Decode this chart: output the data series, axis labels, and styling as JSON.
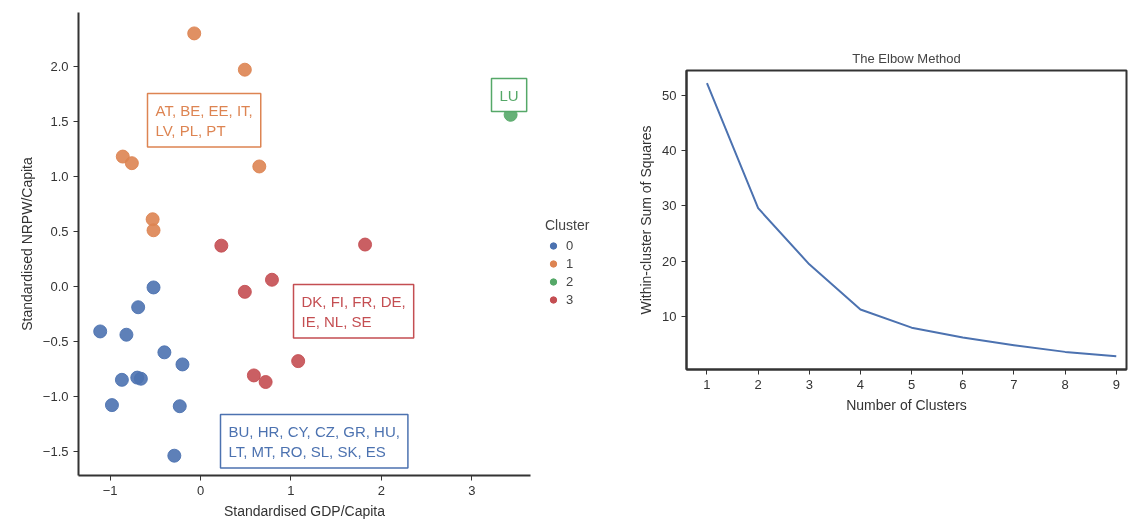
{
  "chart_data": [
    {
      "type": "scatter",
      "xlabel": "Standardised GDP/Capita",
      "ylabel": "Standardised NRPW/Capita",
      "legend_title": "Cluster",
      "legend": "right",
      "grid": false,
      "marker": "circle",
      "xlim": [
        -1.35,
        3.65
      ],
      "ylim": [
        -1.72,
        2.49
      ],
      "xticks": [
        -1,
        0,
        1,
        2,
        3
      ],
      "yticks": [
        {
          "value": -1.5,
          "label": "−1.5"
        },
        {
          "value": -1,
          "label": "−1.0"
        },
        {
          "value": -0.5,
          "label": "−0.5"
        },
        {
          "value": 0,
          "label": "0.0"
        },
        {
          "value": 0.5,
          "label": "0.5"
        },
        {
          "value": 1,
          "label": "1.0"
        },
        {
          "value": 1.5,
          "label": "1.5"
        },
        {
          "value": 2,
          "label": "2.0"
        }
      ],
      "series": [
        {
          "name": "0",
          "color": "#4c72b0",
          "x": [
            -0.52,
            -0.69,
            -1.11,
            -0.82,
            -0.4,
            -0.2,
            -0.87,
            -0.7,
            -0.66,
            -0.98,
            -0.23,
            -0.29
          ],
          "values": [
            -0.01,
            -0.19,
            -0.41,
            -0.44,
            -0.6,
            -0.71,
            -0.85,
            -0.83,
            -0.84,
            -1.08,
            -1.09,
            -1.54
          ]
        },
        {
          "name": "1",
          "color": "#dd8452",
          "x": [
            -0.07,
            0.49,
            -0.86,
            -0.76,
            0.65,
            -0.53,
            -0.52
          ],
          "values": [
            2.3,
            1.97,
            1.18,
            1.12,
            1.09,
            0.61,
            0.51
          ]
        },
        {
          "name": "2",
          "color": "#55a868",
          "x": [
            3.43
          ],
          "values": [
            1.56
          ]
        },
        {
          "name": "3",
          "color": "#c44e52",
          "x": [
            0.23,
            1.82,
            0.79,
            0.49,
            1.08,
            0.59,
            0.72
          ],
          "values": [
            0.37,
            0.38,
            0.06,
            -0.05,
            -0.68,
            -0.81,
            -0.87
          ]
        }
      ],
      "annotations": [
        "BU, HR, CY, CZ, GR, HU,\nLT, MT, RO, SL, SK, ES",
        "AT, BE, EE, IT,\nLV, PL, PT",
        "LU",
        "DK, FI, FR, DE,\nIE, NL, SE"
      ]
    },
    {
      "type": "line",
      "title": "The Elbow Method",
      "xlabel": "Number of Clusters",
      "ylabel": "Within-cluster Sum of Squares",
      "grid": false,
      "legend": false,
      "xlim": [
        0.6,
        9.2
      ],
      "ylim": [
        0.3,
        54.6
      ],
      "xticks": [
        1,
        2,
        3,
        4,
        5,
        6,
        7,
        8,
        9
      ],
      "yticks": [
        10,
        20,
        30,
        40,
        50
      ],
      "series": [
        {
          "color": "#4c72b0",
          "x": [
            1,
            2,
            3,
            4,
            5,
            6,
            7,
            8,
            9
          ],
          "values": [
            52.3,
            29.6,
            19.4,
            11.2,
            7.9,
            6.1,
            4.7,
            3.5,
            2.7
          ]
        }
      ]
    }
  ]
}
